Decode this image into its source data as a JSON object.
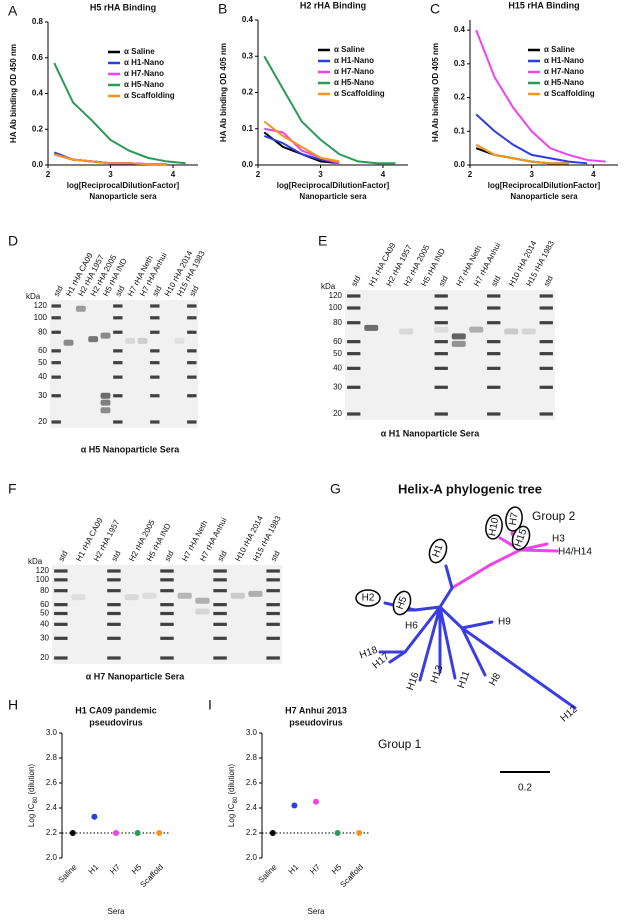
{
  "chart_data": [
    {
      "type": "line",
      "letter": "A",
      "title": "H5 rHA Binding",
      "ylabel": "HA Ab binding OD 450 nm",
      "xlabel": "log[ReciprocalDilutionFactor]",
      "xlabel_note": "Nanoparticle sera",
      "x": [
        2.1,
        2.4,
        2.7,
        3.0,
        3.3,
        3.6,
        3.9,
        4.2
      ],
      "xlim": [
        2,
        4.4
      ],
      "xticks": [
        2,
        3,
        4
      ],
      "ylim": [
        0,
        0.8
      ],
      "yticks": [
        {
          "value": 0,
          "label": "0.0"
        },
        {
          "value": 0.2,
          "label": "0.2"
        },
        {
          "value": 0.4,
          "label": "0.4"
        },
        {
          "value": 0.6,
          "label": "0.6"
        },
        {
          "value": 0.8,
          "label": "0.8"
        }
      ],
      "legend": "upper right",
      "series": [
        {
          "name": "α Saline",
          "color": "#000000",
          "values": [
            0.06,
            0.03,
            0.02,
            0.01,
            0.01,
            0.005,
            0.005,
            null
          ]
        },
        {
          "name": "α H1-Nano",
          "color": "#2b3ee6",
          "values": [
            0.07,
            0.03,
            0.02,
            0.01,
            0.01,
            0.005,
            0.005,
            null
          ]
        },
        {
          "name": "α H7-Nano",
          "color": "#ee44e8",
          "values": [
            0.06,
            0.03,
            0.02,
            0.01,
            0.01,
            0.005,
            0.005,
            null
          ]
        },
        {
          "name": "α H5-Nano",
          "color": "#2a9a56",
          "values": [
            0.57,
            0.35,
            0.25,
            0.14,
            0.08,
            0.04,
            0.02,
            0.01
          ]
        },
        {
          "name": "α Scaffolding",
          "color": "#f7941d",
          "values": [
            0.06,
            0.03,
            0.02,
            0.01,
            0.01,
            0.005,
            0.005,
            null
          ]
        }
      ]
    },
    {
      "type": "line",
      "letter": "B",
      "title": "H2 rHA Binding",
      "ylabel": "HA Ab binding OD 405 nm",
      "xlabel": "log[ReciprocalDilutionFactor]",
      "xlabel_note": "Nanoparticle sera",
      "x": [
        2.1,
        2.4,
        2.7,
        3.0,
        3.3,
        3.6,
        3.9,
        4.2
      ],
      "xlim": [
        2,
        4.4
      ],
      "xticks": [
        2,
        3,
        4
      ],
      "ylim": [
        0,
        0.4
      ],
      "yticks": [
        {
          "value": 0,
          "label": "0.0"
        },
        {
          "value": 0.1,
          "label": "0.1"
        },
        {
          "value": 0.2,
          "label": "0.2"
        },
        {
          "value": 0.3,
          "label": "0.3"
        },
        {
          "value": 0.4,
          "label": "0.4"
        }
      ],
      "legend": "upper right",
      "series": [
        {
          "name": "α Saline",
          "color": "#000000",
          "values": [
            0.09,
            0.05,
            0.03,
            0.01,
            0.005,
            null,
            null,
            null
          ]
        },
        {
          "name": "α H1-Nano",
          "color": "#2b3ee6",
          "values": [
            0.08,
            0.06,
            0.03,
            0.015,
            0.005,
            null,
            null,
            null
          ]
        },
        {
          "name": "α H7-Nano",
          "color": "#ee44e8",
          "values": [
            0.1,
            0.09,
            0.04,
            0.02,
            0.005,
            null,
            null,
            null
          ]
        },
        {
          "name": "α H5-Nano",
          "color": "#2a9a56",
          "values": [
            0.3,
            0.21,
            0.12,
            0.07,
            0.03,
            0.01,
            0.005,
            0.005
          ]
        },
        {
          "name": "α Scaffolding",
          "color": "#f7941d",
          "values": [
            0.12,
            0.08,
            0.05,
            0.02,
            0.01,
            null,
            null,
            null
          ]
        }
      ]
    },
    {
      "type": "line",
      "letter": "C",
      "title": "H15 rHA Binding",
      "ylabel": "HA Ab binding OD 405 nm",
      "xlabel": "log[ReciprocalDilutionFactor]",
      "xlabel_note": "Nanoparticle sera",
      "x": [
        2.1,
        2.4,
        2.7,
        3.0,
        3.3,
        3.6,
        3.9,
        4.2
      ],
      "xlim": [
        2,
        4.4
      ],
      "xticks": [
        2,
        3,
        4
      ],
      "ylim": [
        0,
        0.43
      ],
      "yticks": [
        {
          "value": 0,
          "label": "0.0"
        },
        {
          "value": 0.1,
          "label": "0.1"
        },
        {
          "value": 0.2,
          "label": "0.2"
        },
        {
          "value": 0.3,
          "label": "0.3"
        },
        {
          "value": 0.4,
          "label": "0.4"
        }
      ],
      "legend": "upper right",
      "series": [
        {
          "name": "α Saline",
          "color": "#000000",
          "values": [
            0.05,
            0.03,
            0.02,
            0.01,
            0.005,
            0.005,
            null,
            null
          ]
        },
        {
          "name": "α H1-Nano",
          "color": "#2b3ee6",
          "values": [
            0.15,
            0.1,
            0.06,
            0.03,
            0.02,
            0.01,
            0.005,
            null
          ]
        },
        {
          "name": "α H7-Nano",
          "color": "#ee44e8",
          "values": [
            0.4,
            0.26,
            0.17,
            0.1,
            0.05,
            0.03,
            0.015,
            0.01
          ]
        },
        {
          "name": "α H5-Nano",
          "color": "#2a9a56",
          "values": [
            0.06,
            0.03,
            0.02,
            0.01,
            0.005,
            0.005,
            null,
            null
          ]
        },
        {
          "name": "α Scaffolding",
          "color": "#f7941d",
          "values": [
            0.06,
            0.03,
            0.02,
            0.01,
            0.005,
            0.005,
            null,
            null
          ]
        }
      ]
    },
    {
      "type": "dot",
      "letter": "H",
      "title": [
        "H1 CA09 pandemic",
        "pseudovirus"
      ],
      "ylabel": [
        "Log IC",
        "80",
        " (dilution)"
      ],
      "xlabel": "Sera",
      "categories": [
        "Saline",
        "H1",
        "H7",
        "H5",
        "Scaffold"
      ],
      "values": [
        2.2,
        2.33,
        2.2,
        2.2,
        2.2
      ],
      "colors": [
        "#000000",
        "#2b3ee6",
        "#ee44e8",
        "#2a9a56",
        "#f7941d"
      ],
      "reference_line": 2.2,
      "ylim": [
        2,
        3
      ],
      "yticks": [
        {
          "value": 2,
          "label": "2.0"
        },
        {
          "value": 2.2,
          "label": "2.2"
        },
        {
          "value": 2.4,
          "label": "2.4"
        },
        {
          "value": 2.6,
          "label": "2.6"
        },
        {
          "value": 2.8,
          "label": "2.8"
        },
        {
          "value": 3,
          "label": "3.0"
        }
      ]
    },
    {
      "type": "dot",
      "letter": "I",
      "title": [
        "H7 Anhui 2013",
        "pseudovirus"
      ],
      "ylabel": [
        "Log IC",
        "80",
        " (dilution)"
      ],
      "xlabel": "Sera",
      "categories": [
        "Saline",
        "H1",
        "H7",
        "H5",
        "Scaffold"
      ],
      "values": [
        2.2,
        2.42,
        2.45,
        2.2,
        2.2
      ],
      "colors": [
        "#000000",
        "#2b3ee6",
        "#ee44e8",
        "#2a9a56",
        "#f7941d"
      ],
      "reference_line": 2.2,
      "ylim": [
        2,
        3
      ],
      "yticks": [
        {
          "value": 2,
          "label": "2.0"
        },
        {
          "value": 2.2,
          "label": "2.2"
        },
        {
          "value": 2.4,
          "label": "2.4"
        },
        {
          "value": 2.6,
          "label": "2.6"
        },
        {
          "value": 2.8,
          "label": "2.8"
        },
        {
          "value": 3,
          "label": "3.0"
        }
      ]
    }
  ],
  "blots": [
    {
      "letter": "D",
      "lanes": [
        "std",
        "H1 rHA CA09",
        "H2 rHA 1957",
        "H2 rHA 2005",
        "H5 rHA IND",
        "std",
        "H7 rHA Neth",
        "H7 rHA Anhui",
        "std",
        "H10 rHA 2014",
        "H15 rHA 1983",
        "std"
      ],
      "kda_label": "kDa",
      "markers": [
        "120",
        "100",
        "80",
        "60",
        "50",
        "40",
        "30",
        "20"
      ],
      "caption": "α H5 Nanoparticle Sera"
    },
    {
      "letter": "E",
      "lanes": [
        "std",
        "H1 rHA CA09",
        "H2 rHA 1957",
        "H2 rHA 2005",
        "H5 rHA IND",
        "std",
        "H7 rHA Neth",
        "H7 rHA Anhui",
        "std",
        "H10 rHA 2014",
        "H15 rHA 1983",
        "std"
      ],
      "kda_label": "kDa",
      "markers": [
        "120",
        "100",
        "80",
        "60",
        "50",
        "40",
        "30",
        "20"
      ],
      "caption": "α H1 Nanoparticle Sera"
    },
    {
      "letter": "F",
      "lanes": [
        "std",
        "H1 rHA CA09",
        "H2 rHA 1957",
        "std",
        "H2 rHA 2005",
        "H5 rHA IND",
        "std",
        "H7 rHA Neth",
        "H7 rHA Anhui",
        "std",
        "H10 rHA 2014",
        "H15 rHA 1983",
        "std"
      ],
      "kda_label": "kDa",
      "markers": [
        "120",
        "100",
        "80",
        "60",
        "50",
        "40",
        "30",
        "20"
      ],
      "caption": "α H7 Nanoparticle Sera"
    }
  ],
  "tree": {
    "letter": "G",
    "title": "Helix-A phylogenic tree",
    "leaves": [
      "H7",
      "H10",
      "H15",
      "H3",
      "H4/H14",
      "H1",
      "H2",
      "H5",
      "H6",
      "H18",
      "H17",
      "H16",
      "H13",
      "H11",
      "H8",
      "H9",
      "H12"
    ],
    "groups": [
      "Group 2",
      "Group 1"
    ],
    "scale": "0.2"
  }
}
